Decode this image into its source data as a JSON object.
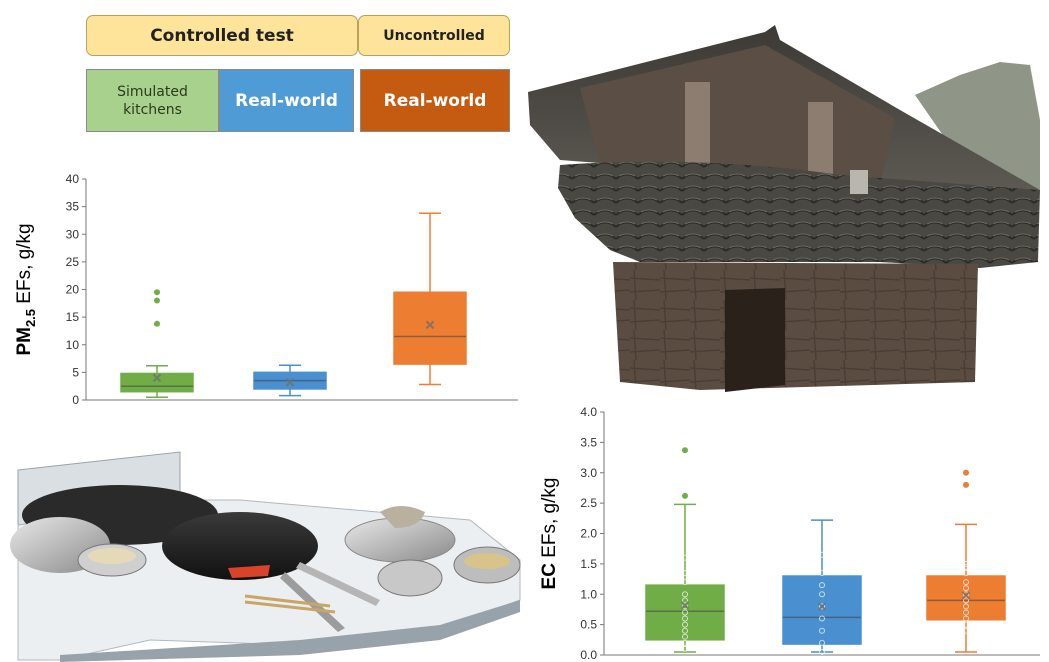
{
  "header": {
    "controlled_label": "Controlled test",
    "uncontrolled_label": "Uncontrolled",
    "sim_label_line1": "Simulated",
    "sim_label_line2": "kitchens",
    "realworld_label_1": "Real-world",
    "realworld_label_2": "Real-world"
  },
  "colors": {
    "green": "#70ad47",
    "blue": "#4a8fd0",
    "orange": "#ed7d31"
  },
  "chart_data": [
    {
      "type": "box",
      "ylabel_bold": "PM",
      "ylabel_sub": "2.5",
      "ylabel_rest": " EFs, g/kg",
      "ylim": [
        0,
        40
      ],
      "yticks": [
        "0",
        "5",
        "10",
        "15",
        "20",
        "25",
        "30",
        "35",
        "40"
      ],
      "series": [
        {
          "min": 0.5,
          "q1": 1.5,
          "median": 2.5,
          "q3": 4.8,
          "max": 6.2,
          "mean": 4.0,
          "outliers": [
            13.8,
            18.0,
            19.5
          ]
        },
        {
          "min": 0.8,
          "q1": 2.0,
          "median": 3.5,
          "q3": 5.0,
          "max": 6.3,
          "mean": 3.2,
          "outliers": []
        },
        {
          "min": 2.8,
          "q1": 6.5,
          "median": 11.5,
          "q3": 19.5,
          "max": 33.8,
          "mean": 13.6,
          "outliers": []
        }
      ]
    },
    {
      "type": "box",
      "ylabel_bold": "EC",
      "ylabel_rest": " EFs, g/kg",
      "ylim": [
        0,
        4
      ],
      "yticks": [
        "0.0",
        "0.5",
        "1.0",
        "1.5",
        "2.0",
        "2.5",
        "3.0",
        "3.5",
        "4.0"
      ],
      "series": [
        {
          "min": 0.05,
          "q1": 0.25,
          "median": 0.72,
          "q3": 1.15,
          "max": 2.48,
          "mean": 0.82,
          "outliers": [
            2.62,
            3.37
          ],
          "points": [
            0.1,
            0.2,
            0.3,
            0.4,
            0.5,
            0.6,
            0.7,
            0.8,
            0.9,
            1.0,
            1.2,
            1.35,
            1.6
          ]
        },
        {
          "min": 0.05,
          "q1": 0.18,
          "median": 0.62,
          "q3": 1.3,
          "max": 2.22,
          "mean": 0.8,
          "outliers": [],
          "points": [
            0.05,
            0.2,
            0.4,
            0.6,
            0.8,
            1.0,
            1.15,
            1.35,
            1.65
          ]
        },
        {
          "min": 0.05,
          "q1": 0.58,
          "median": 0.9,
          "q3": 1.3,
          "max": 2.15,
          "mean": 0.98,
          "outliers": [
            2.8,
            3.0
          ],
          "points": [
            0.4,
            0.5,
            0.6,
            0.7,
            0.8,
            0.9,
            1.0,
            1.1,
            1.2,
            1.35,
            1.45,
            1.5
          ]
        }
      ]
    }
  ]
}
